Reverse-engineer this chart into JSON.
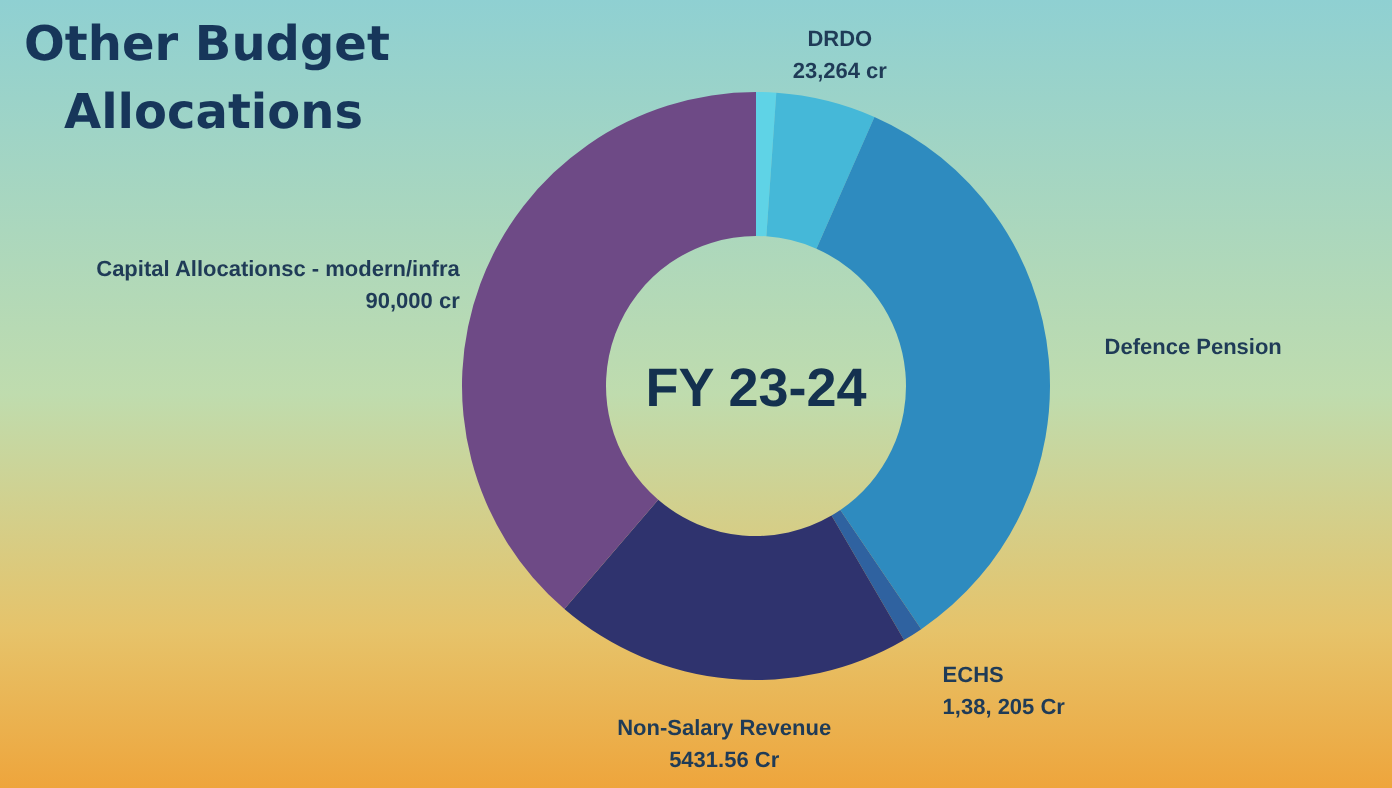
{
  "chart_data": {
    "type": "donut",
    "title": "Other Budget Allocations",
    "annotations": [
      "FY 23-24",
      {
        "text": "23,264 cr",
        "x": "DRDO"
      },
      {
        "text": "1,38, 205 Cr",
        "x": "ECHS"
      },
      {
        "text": "5431.56 Cr",
        "x": "Non-Salary Revenue"
      },
      {
        "text": "90,000 cr",
        "x": "Capital Allocationsc - modern/infra"
      }
    ],
    "categories": [
      null,
      "DRDO",
      "Defence Pension",
      "ECHS",
      "Non-Salary Revenue",
      "Capital Allocationsc - modern/infra"
    ],
    "values": [
      1.1,
      5.5,
      33.9,
      1.1,
      19.7,
      38.7
    ],
    "colors": [
      "#5fd3e6",
      "#45b8d8",
      "#2e8bbf",
      "#2f62a0",
      "#2f336e",
      "#6e4a86"
    ]
  }
}
